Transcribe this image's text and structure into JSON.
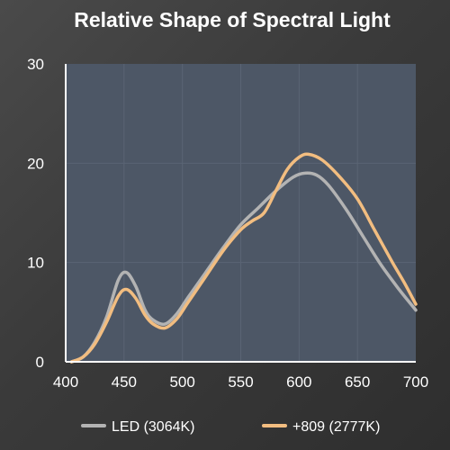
{
  "chart_data": {
    "type": "line",
    "title": "Relative Shape of Spectral Light",
    "xlabel": "",
    "ylabel": "",
    "xlim": [
      400,
      700
    ],
    "ylim": [
      0,
      30
    ],
    "x_ticks": [
      "400",
      "450",
      "500",
      "550",
      "600",
      "650",
      "700"
    ],
    "y_ticks": [
      "0",
      "10",
      "20",
      "30"
    ],
    "grid": true,
    "legend_position": "bottom",
    "colors": {
      "plot_bg": "#4d5766",
      "grid": "#5a6474",
      "axis": "#ffffff"
    },
    "series": [
      {
        "name": "LED (3064K)",
        "color": "#b3b3b3",
        "points": [
          [
            405,
            0
          ],
          [
            415,
            0.5
          ],
          [
            425,
            2.0
          ],
          [
            435,
            4.5
          ],
          [
            445,
            8.2
          ],
          [
            452,
            9.0
          ],
          [
            460,
            7.6
          ],
          [
            468,
            5.2
          ],
          [
            475,
            4.2
          ],
          [
            485,
            3.8
          ],
          [
            495,
            4.8
          ],
          [
            505,
            6.5
          ],
          [
            520,
            9.0
          ],
          [
            535,
            11.5
          ],
          [
            550,
            13.8
          ],
          [
            565,
            15.5
          ],
          [
            580,
            17.2
          ],
          [
            595,
            18.6
          ],
          [
            605,
            19.0
          ],
          [
            615,
            18.8
          ],
          [
            625,
            17.8
          ],
          [
            640,
            15.4
          ],
          [
            655,
            12.6
          ],
          [
            670,
            9.8
          ],
          [
            685,
            7.4
          ],
          [
            700,
            5.2
          ]
        ]
      },
      {
        "name": "+809 (2777K)",
        "color": "#f2bd80",
        "points": [
          [
            405,
            0
          ],
          [
            415,
            0.5
          ],
          [
            425,
            1.8
          ],
          [
            435,
            4.0
          ],
          [
            445,
            6.6
          ],
          [
            452,
            7.3
          ],
          [
            460,
            6.4
          ],
          [
            468,
            4.7
          ],
          [
            475,
            3.8
          ],
          [
            485,
            3.4
          ],
          [
            495,
            4.3
          ],
          [
            505,
            6.0
          ],
          [
            520,
            8.6
          ],
          [
            535,
            11.2
          ],
          [
            550,
            13.3
          ],
          [
            560,
            14.2
          ],
          [
            570,
            15.0
          ],
          [
            580,
            17.2
          ],
          [
            590,
            19.4
          ],
          [
            600,
            20.6
          ],
          [
            608,
            20.9
          ],
          [
            620,
            20.3
          ],
          [
            635,
            18.6
          ],
          [
            650,
            16.4
          ],
          [
            665,
            13.2
          ],
          [
            680,
            10.0
          ],
          [
            690,
            8.0
          ],
          [
            700,
            5.8
          ]
        ]
      }
    ]
  }
}
